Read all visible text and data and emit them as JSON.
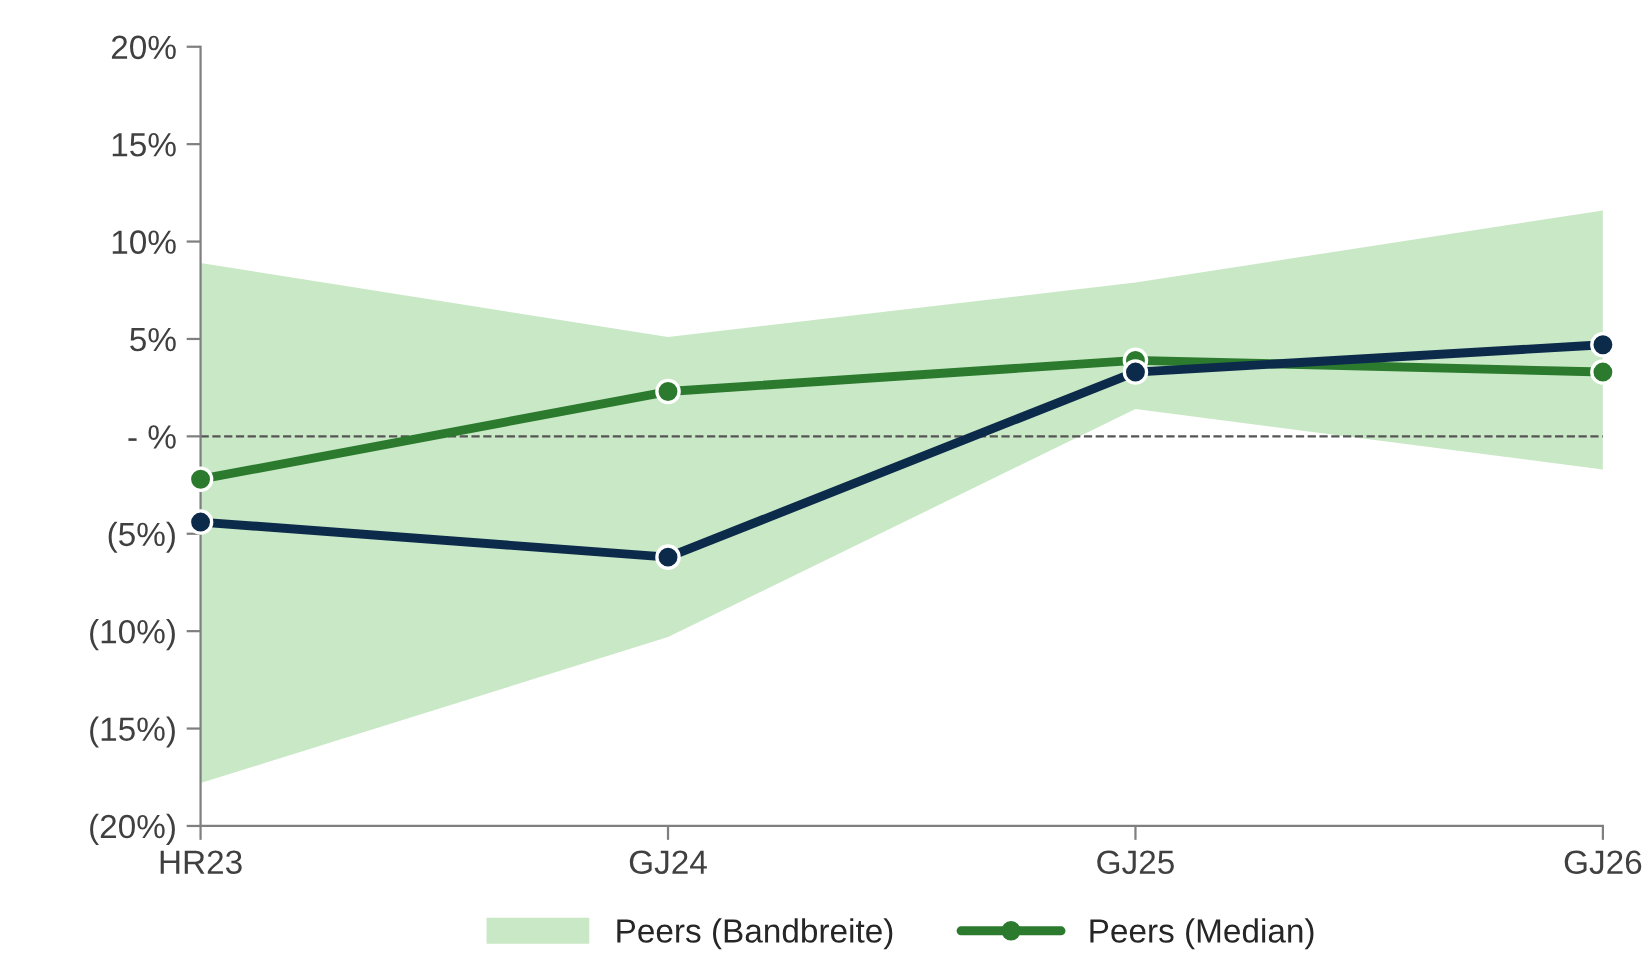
{
  "chart_data": {
    "type": "line",
    "categories": [
      "HR23",
      "GJ24",
      "GJ25",
      "GJ26"
    ],
    "series": [
      {
        "type": "area",
        "name": "Peers (Bandbreite)",
        "color": "#c9e8c6",
        "values": [
          null,
          null,
          null,
          null
        ],
        "lower": [
          -17.8,
          -10.3,
          1.4,
          -1.7
        ],
        "upper": [
          8.9,
          5.1,
          7.9,
          11.6
        ]
      },
      {
        "name": "Peers (Median)",
        "color": "#2b7a2e",
        "values": [
          -2.2,
          2.3,
          3.9,
          3.3
        ],
        "marker": "circle"
      },
      {
        "color": "#0c2b4b",
        "values": [
          -4.4,
          -6.2,
          3.3,
          4.7
        ],
        "marker": "circle"
      }
    ],
    "ylim": [
      -20,
      20
    ],
    "yticks": [
      {
        "value": -20,
        "label": "(20%)"
      },
      {
        "value": -15,
        "label": "(15%)"
      },
      {
        "value": -10,
        "label": "(10%)"
      },
      {
        "value": -5,
        "label": "(5%)"
      },
      {
        "value": 0,
        "label": "- %"
      },
      {
        "value": 5,
        "label": "5%"
      },
      {
        "value": 10,
        "label": "10%"
      },
      {
        "value": 15,
        "label": "15%"
      },
      {
        "value": 20,
        "label": "20%"
      }
    ],
    "ref_lines": [
      {
        "axis": "y",
        "value": 0,
        "color": "#555555",
        "line_style": "dashed"
      }
    ],
    "line_style": "solid",
    "grid": false,
    "legend": "bottom"
  }
}
